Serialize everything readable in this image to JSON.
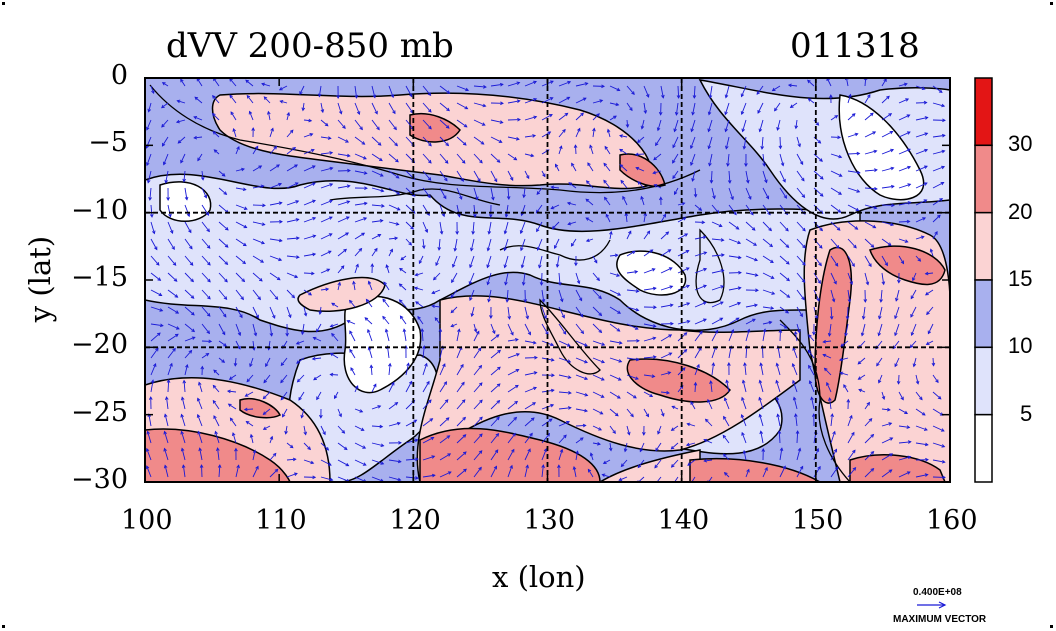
{
  "chart": {
    "title": "dVV 200-850 mb",
    "date_label": "011318",
    "xlabel": "x (lon)",
    "ylabel": "y (lat)",
    "vector_ref_value": "0.400E+08",
    "vector_ref_label": "MAXIMUM VECTOR"
  },
  "chart_data": {
    "type": "heatmap",
    "title": "dVV 200-850 mb",
    "subtitle": "011318",
    "xlabel": "x (lon)",
    "ylabel": "y (lat)",
    "xlim": [
      100,
      160
    ],
    "ylim": [
      -30,
      0
    ],
    "xticks": [
      100,
      110,
      120,
      130,
      140,
      150,
      160
    ],
    "yticks": [
      0,
      -5,
      -10,
      -15,
      -20,
      -25,
      -30
    ],
    "grid": "dashed at 120, 130, 140, 150 lon and -10, -20 lat",
    "colorbar": {
      "levels": [
        5,
        10,
        15,
        20,
        30
      ],
      "tick_labels": [
        "5",
        "10",
        "15",
        "20",
        "30"
      ],
      "colors": [
        "#ffffff",
        "#dfe3fb",
        "#a8b0ee",
        "#fbd3d3",
        "#f08a8a",
        "#e31515"
      ]
    },
    "overlay": "wind vectors (blue arrows)"
  },
  "colors": {
    "c0": "#ffffff",
    "c1": "#dfe3fb",
    "c2": "#a8b0ee",
    "c3": "#fbd3d3",
    "c4": "#f08a8a",
    "c5": "#e31515",
    "vector": "#1a1ad6"
  }
}
